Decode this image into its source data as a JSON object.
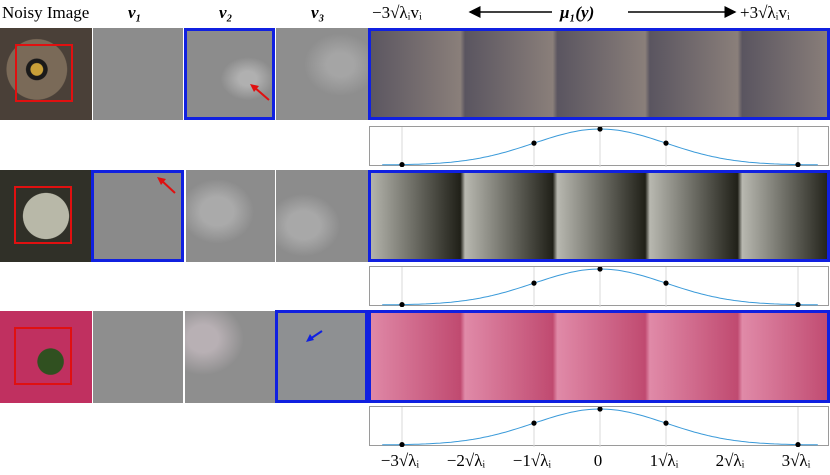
{
  "headers": {
    "noisy": "Noisy Image",
    "v1": "v₁",
    "v2": "v₂",
    "v3": "v₃",
    "left": "−3√λᵢvᵢ",
    "center": "μ₁(y)",
    "right": "+3√λᵢvᵢ"
  },
  "x_ticks": [
    "−3√λᵢ",
    "−2√λᵢ",
    "−1√λᵢ",
    "0",
    "1√λᵢ",
    "2√λᵢ",
    "3√λᵢ"
  ],
  "rows": [
    {
      "subject": "owl eye",
      "highlighted_pc": "v2",
      "arrow_color": "#e01010"
    },
    {
      "subject": "lace pattern",
      "highlighted_pc": "v1",
      "arrow_color": "#e01010"
    },
    {
      "subject": "pink flower",
      "highlighted_pc": "v3",
      "arrow_color": "#1020e0"
    }
  ],
  "colors": {
    "highlight": "#1020e0",
    "crop_box": "#e01010",
    "curve": "#3a9ad9"
  },
  "chart_data": {
    "type": "line",
    "x": [
      -3,
      -1,
      0,
      1,
      3
    ],
    "y": [
      0.011,
      0.607,
      1.0,
      0.607,
      0.011
    ],
    "xlabel": "",
    "ylabel": "",
    "xlim": [
      -3.3,
      3.3
    ],
    "grid": true
  }
}
